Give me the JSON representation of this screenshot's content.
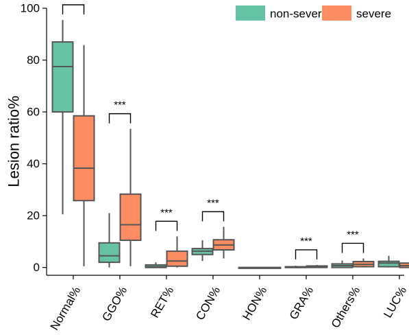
{
  "chart_data": {
    "type": "box",
    "ylabel": "Lesion ratio%",
    "ylim": [
      -3,
      100
    ],
    "yticks": [
      0,
      20,
      40,
      60,
      80,
      100
    ],
    "categories": [
      "Normal%",
      "GGO%",
      "RET%",
      "CON%",
      "HON%",
      "GRA%",
      "Others%",
      "LUC%"
    ],
    "legend_position": "top-right",
    "significance_label": "***",
    "significant_categories": [
      "Normal%",
      "GGO%",
      "RET%",
      "CON%",
      "GRA%",
      "Others%"
    ],
    "series": [
      {
        "name": "non-severe",
        "color": "#66c2a5",
        "boxes": [
          {
            "min": 20.5,
            "q1": 60,
            "median": 77.5,
            "q3": 87,
            "max": 95.5
          },
          {
            "min": 0,
            "q1": 2,
            "median": 4.5,
            "q3": 9.5,
            "max": 21
          },
          {
            "min": 0,
            "q1": 0,
            "median": 0.3,
            "q3": 1,
            "max": 2
          },
          {
            "min": 2.5,
            "q1": 5,
            "median": 6.3,
            "q3": 7.3,
            "max": 10.5
          },
          {
            "min": 0,
            "q1": 0,
            "median": 0,
            "q3": 0,
            "max": 0
          },
          {
            "min": 0,
            "q1": 0,
            "median": 0,
            "q3": 0.3,
            "max": 0.7
          },
          {
            "min": 0,
            "q1": 0,
            "median": 0.7,
            "q3": 1.4,
            "max": 2.7
          },
          {
            "min": 0,
            "q1": 0.3,
            "median": 1.7,
            "q3": 2.4,
            "max": 4.5
          }
        ]
      },
      {
        "name": "severe",
        "color": "#fc8d62",
        "boxes": [
          {
            "min": 0.5,
            "q1": 25.8,
            "median": 38.3,
            "q3": 58.5,
            "max": 85.8
          },
          {
            "min": 0.5,
            "q1": 10.5,
            "median": 16.5,
            "q3": 28.3,
            "max": 53.5
          },
          {
            "min": 0,
            "q1": 0.5,
            "median": 2.5,
            "q3": 6.3,
            "max": 12
          },
          {
            "min": 3.5,
            "q1": 6.8,
            "median": 8.7,
            "q3": 10.7,
            "max": 15.7
          },
          {
            "min": 0,
            "q1": 0,
            "median": 0,
            "q3": 0,
            "max": 0
          },
          {
            "min": 0,
            "q1": 0,
            "median": 0.3,
            "q3": 0.6,
            "max": 1
          },
          {
            "min": 0,
            "q1": 0.3,
            "median": 1.2,
            "q3": 2.3,
            "max": 3.5
          },
          {
            "min": 0,
            "q1": 0,
            "median": 0.7,
            "q3": 1.7,
            "max": 2.7
          }
        ]
      }
    ]
  }
}
